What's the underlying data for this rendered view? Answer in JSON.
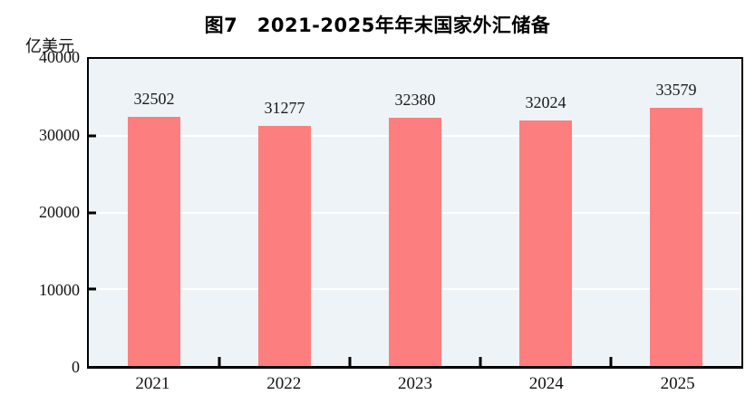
{
  "figure": {
    "title": "图7　2021-2025年年末国家外汇储备",
    "unit_label": "亿美元"
  },
  "chart_data": {
    "type": "bar",
    "title": "图7　2021-2025年年末国家外汇储备",
    "ylabel": "亿美元",
    "xlabel": "",
    "categories": [
      "2021",
      "2022",
      "2023",
      "2024",
      "2025"
    ],
    "values": [
      32502,
      31277,
      32380,
      32024,
      33579
    ],
    "value_labels": [
      "32502",
      "31277",
      "32380",
      "32024",
      "33579"
    ],
    "ylim": [
      0,
      40000
    ],
    "yticks": [
      0,
      10000,
      20000,
      30000,
      40000
    ],
    "grid": "horizontal",
    "legend_position": "none",
    "colors": {
      "bar": "#FD7E7E",
      "plot_background": "#EDF3F7",
      "gridline": "#FFFFFF",
      "axis": "#000000",
      "text": "#111111"
    }
  }
}
